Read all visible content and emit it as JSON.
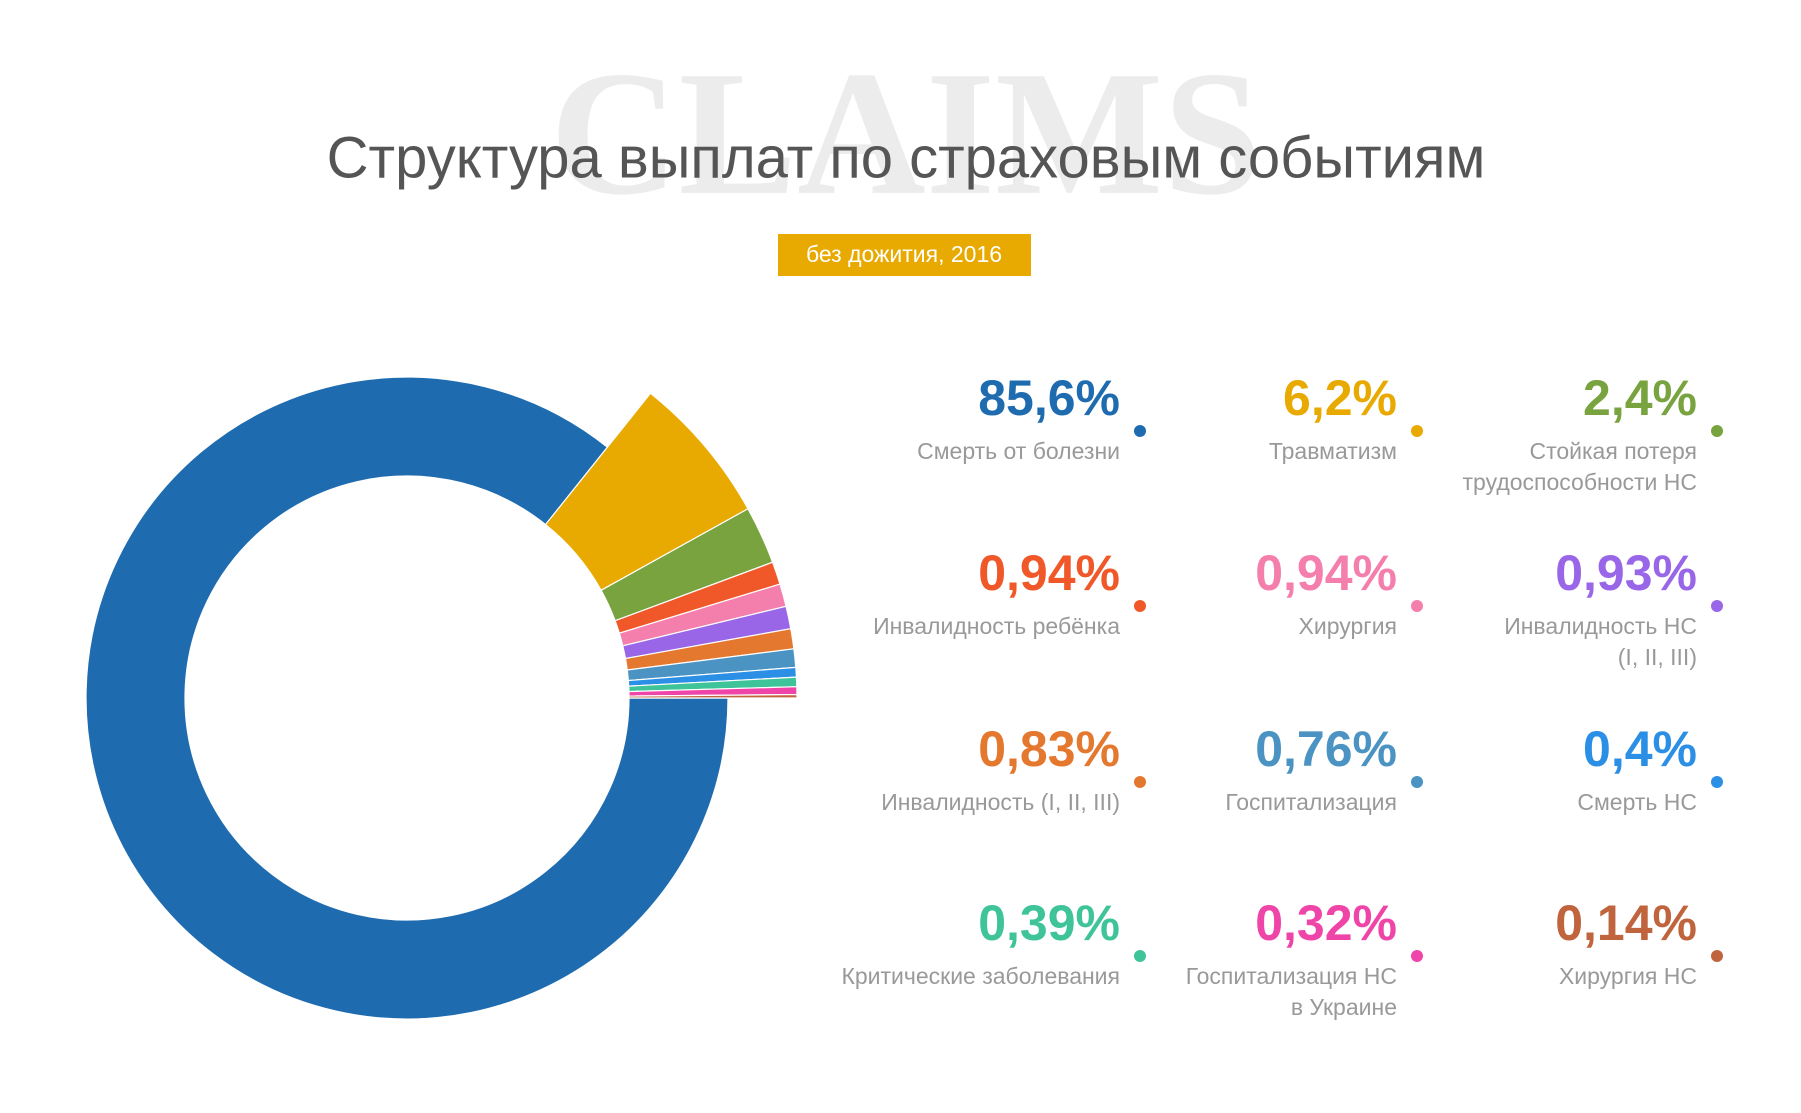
{
  "chart_data": {
    "type": "pie",
    "watermark": "CLAIMS",
    "title": "Структура выплат по страховым событиям",
    "subtitle": "без дожития, 2016",
    "categories": [
      [
        "Смерть от болезни"
      ],
      [
        "Травматизм"
      ],
      [
        "Стойкая потеря",
        "трудоспособности НС"
      ],
      [
        "Инвалидность ребёнка"
      ],
      [
        "Хирургия"
      ],
      [
        "Инвалидность НС",
        "(I, II, III)"
      ],
      [
        "Инвалидность (I, II, III)"
      ],
      [
        "Госпитализация"
      ],
      [
        "Смерть НС"
      ],
      [
        "Критические заболевания"
      ],
      [
        "Госпитализация НС",
        "в Украине"
      ],
      [
        "Хирургия НС"
      ]
    ],
    "values": [
      85.6,
      6.2,
      2.4,
      0.94,
      0.94,
      0.93,
      0.83,
      0.76,
      0.4,
      0.39,
      0.32,
      0.14
    ],
    "value_labels": [
      "85,6%",
      "6,2%",
      "2,4%",
      "0,94%",
      "0,94%",
      "0,93%",
      "0,83%",
      "0,76%",
      "0,4%",
      "0,39%",
      "0,32%",
      "0,14%"
    ],
    "colors": [
      "#1f6bb0",
      "#e8a900",
      "#79a33f",
      "#f0582a",
      "#f57fac",
      "#9966e8",
      "#e4782e",
      "#4a93c2",
      "#2b8fe6",
      "#3fc49a",
      "#f045a8",
      "#c0643e"
    ]
  }
}
